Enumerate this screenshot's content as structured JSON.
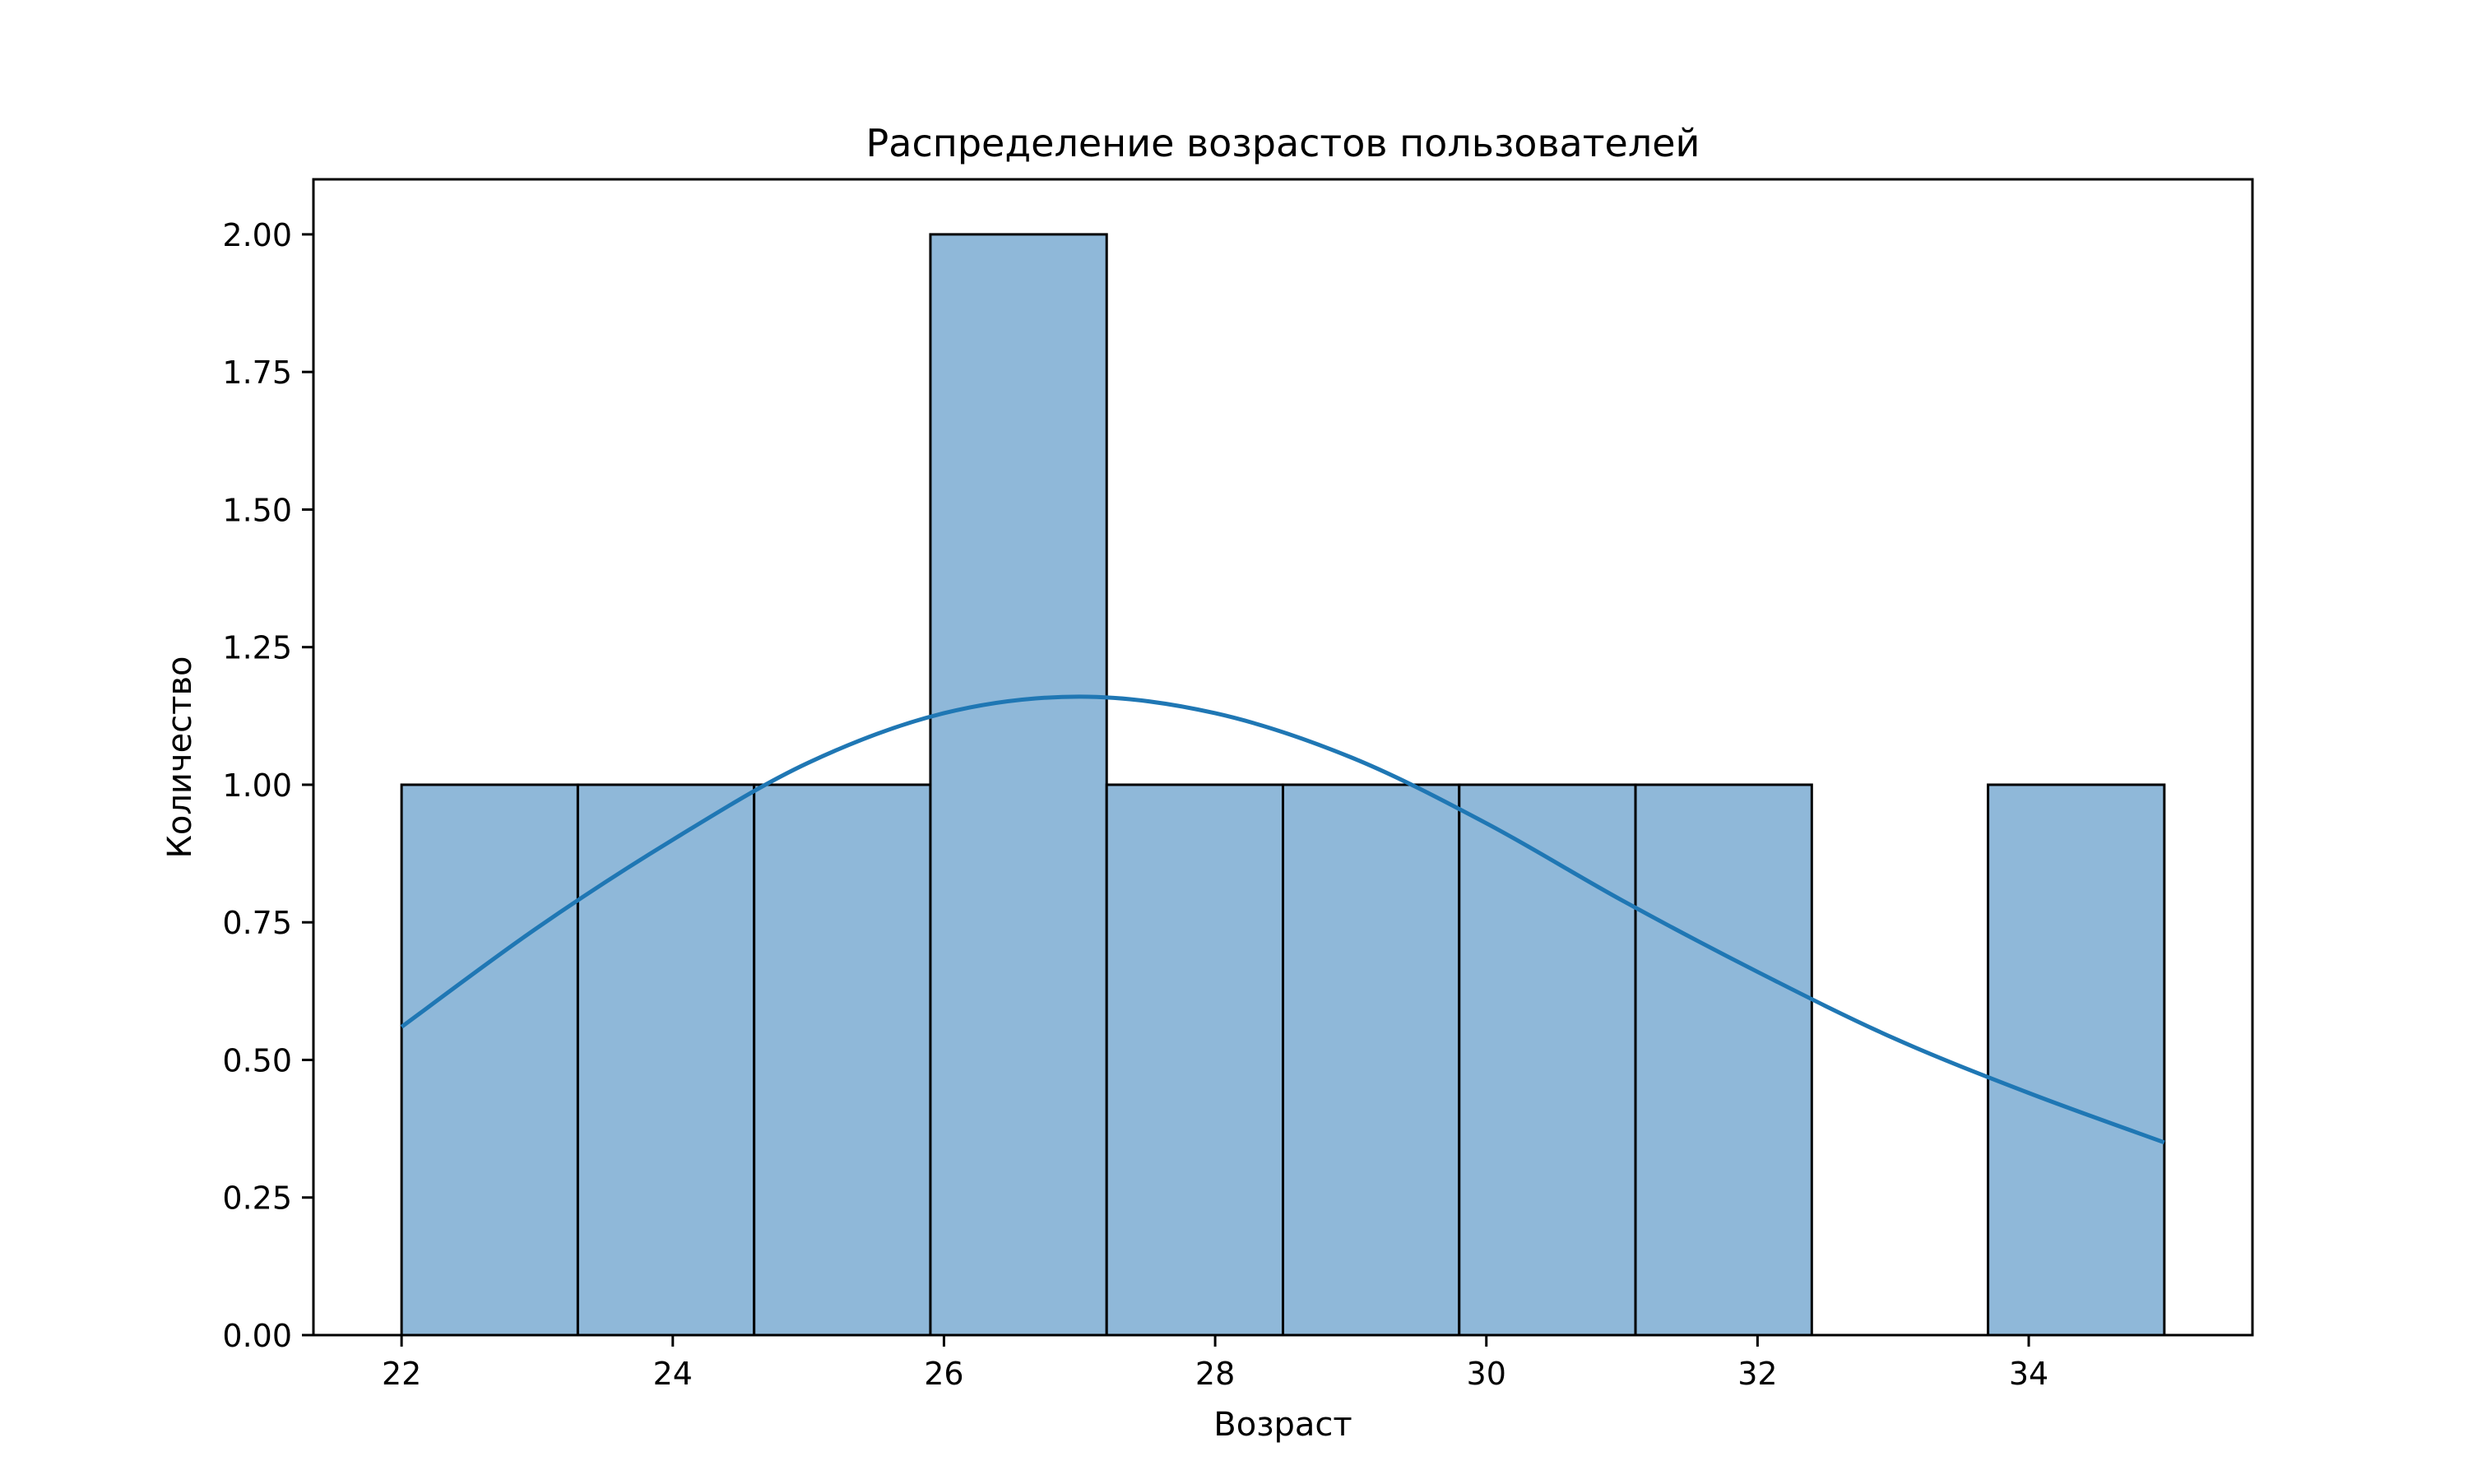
{
  "chart_data": {
    "type": "bar",
    "title": "Распределение возрастов пользователей",
    "xlabel": "Возраст",
    "ylabel": "Количество",
    "bins": [
      {
        "start": 22.0,
        "end": 23.3,
        "count": 1
      },
      {
        "start": 23.3,
        "end": 24.6,
        "count": 1
      },
      {
        "start": 24.6,
        "end": 25.9,
        "count": 1
      },
      {
        "start": 25.9,
        "end": 27.2,
        "count": 2
      },
      {
        "start": 27.2,
        "end": 28.5,
        "count": 1
      },
      {
        "start": 28.5,
        "end": 29.8,
        "count": 1
      },
      {
        "start": 29.8,
        "end": 31.1,
        "count": 1
      },
      {
        "start": 31.1,
        "end": 32.4,
        "count": 1
      },
      {
        "start": 32.4,
        "end": 33.7,
        "count": 0
      },
      {
        "start": 33.7,
        "end": 35.0,
        "count": 1
      }
    ],
    "kde_curve": [
      [
        22.0,
        0.56
      ],
      [
        23.0,
        0.74
      ],
      [
        24.0,
        0.9
      ],
      [
        25.0,
        1.04
      ],
      [
        26.0,
        1.13
      ],
      [
        27.0,
        1.16
      ],
      [
        28.0,
        1.13
      ],
      [
        29.0,
        1.05
      ],
      [
        30.0,
        0.93
      ],
      [
        31.0,
        0.79
      ],
      [
        32.0,
        0.66
      ],
      [
        33.0,
        0.54
      ],
      [
        34.0,
        0.44
      ],
      [
        35.0,
        0.35
      ]
    ],
    "xlim": [
      21.35,
      35.65
    ],
    "ylim": [
      0,
      2.1
    ],
    "xticks": [
      22,
      24,
      26,
      28,
      30,
      32,
      34
    ],
    "xtick_labels": [
      "22",
      "24",
      "26",
      "28",
      "30",
      "32",
      "34"
    ],
    "yticks": [
      0,
      0.25,
      0.5,
      0.75,
      1.0,
      1.25,
      1.5,
      1.75,
      2.0
    ],
    "ytick_labels": [
      "0.00",
      "0.25",
      "0.50",
      "0.75",
      "1.00",
      "1.25",
      "1.50",
      "1.75",
      "2.00"
    ],
    "bar_fill": "#8fb8d9",
    "bar_edge": "#000000",
    "kde_color": "#1f77b4",
    "grid": false,
    "legend": "none"
  }
}
